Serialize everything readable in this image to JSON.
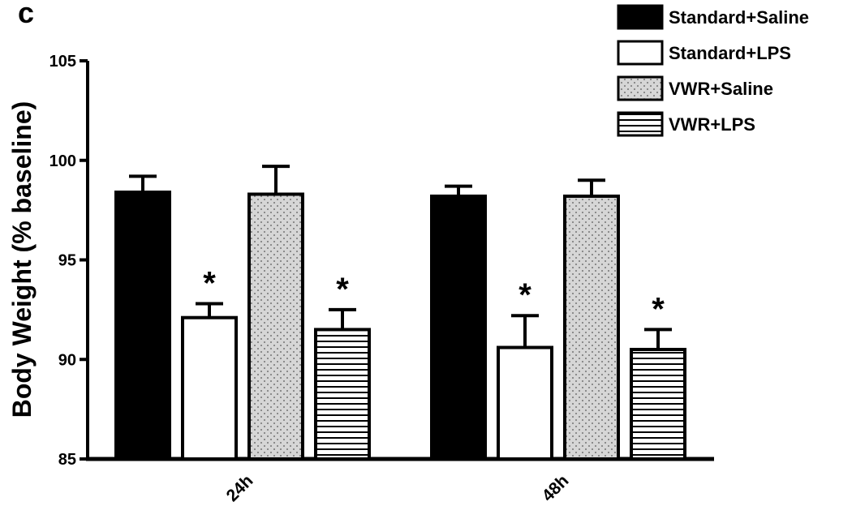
{
  "panel_label": "c",
  "chart_data": {
    "type": "bar",
    "ylabel": "Body Weight (% baseline)",
    "xlabel": "",
    "ylim": [
      85,
      105
    ],
    "yticks": [
      85,
      90,
      95,
      100,
      105
    ],
    "categories": [
      "24h",
      "48h"
    ],
    "legend_position": "top-right",
    "grid": false,
    "series": [
      {
        "name": "Standard+Saline",
        "fill": "solid",
        "color": "#000000",
        "values": [
          98.4,
          98.2
        ],
        "errors": [
          0.8,
          0.5
        ],
        "significant": [
          false,
          false
        ]
      },
      {
        "name": "Standard+LPS",
        "fill": "empty",
        "color": "#ffffff",
        "values": [
          92.1,
          90.6
        ],
        "errors": [
          0.7,
          1.6
        ],
        "significant": [
          true,
          true
        ]
      },
      {
        "name": "VWR+Saline",
        "fill": "dots",
        "color": "#cccccc",
        "values": [
          98.3,
          98.2
        ],
        "errors": [
          1.4,
          0.8
        ],
        "significant": [
          false,
          false
        ]
      },
      {
        "name": "VWR+LPS",
        "fill": "hlines",
        "color": "#ffffff",
        "values": [
          91.5,
          90.5
        ],
        "errors": [
          1.0,
          1.0
        ],
        "significant": [
          true,
          true
        ]
      }
    ],
    "significance_marker": "*"
  }
}
